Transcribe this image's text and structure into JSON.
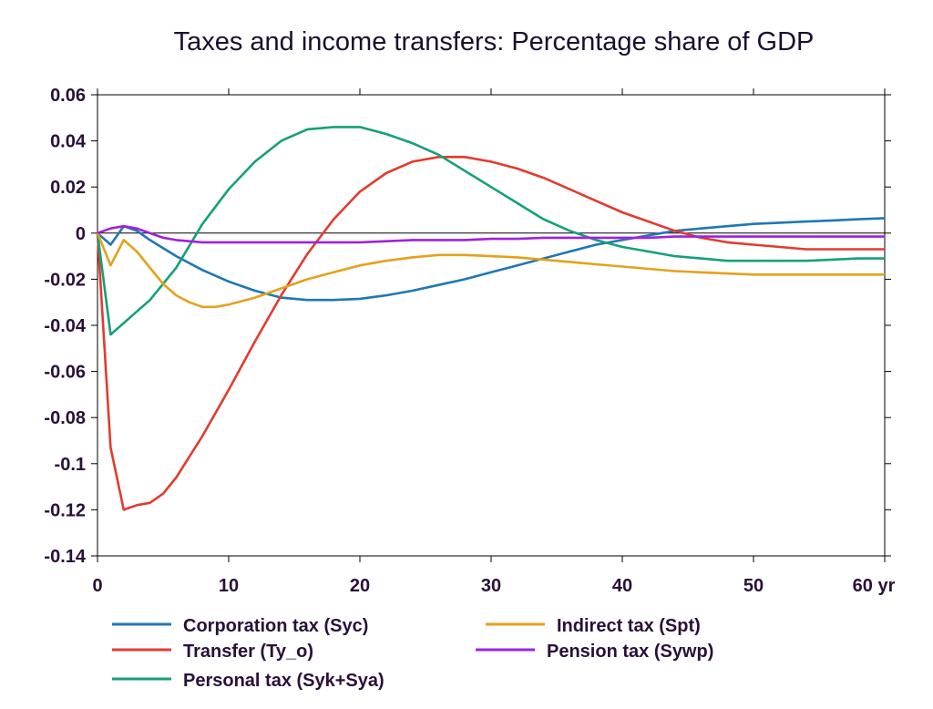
{
  "chart_data": {
    "type": "line",
    "title": "Taxes and income transfers: Percentage share of GDP",
    "xlim": [
      0,
      60
    ],
    "ylim": [
      -0.14,
      0.06
    ],
    "x_ticks": [
      0,
      10,
      20,
      30,
      40,
      50,
      60
    ],
    "x_tick_labels": [
      "0",
      "10",
      "20",
      "30",
      "40",
      "50",
      "60 yr"
    ],
    "y_ticks": [
      0.06,
      0.04,
      0.02,
      0,
      -0.02,
      -0.04,
      -0.06,
      -0.08,
      -0.1,
      -0.12,
      -0.14
    ],
    "y_tick_labels": [
      "0.06",
      "0.04",
      "0.02",
      "0",
      "-0.02",
      "-0.04",
      "-0.06",
      "-0.08",
      "-0.1",
      "-0.12",
      "-0.14"
    ],
    "grid": true,
    "zero_line": true,
    "legend_position": "bottom",
    "series": [
      {
        "name": "Corporation tax (Syc)",
        "color": "#1f77b4",
        "x": [
          0,
          1,
          2,
          3,
          4,
          6,
          8,
          10,
          12,
          14,
          16,
          18,
          20,
          22,
          24,
          26,
          28,
          30,
          32,
          34,
          36,
          38,
          40,
          42,
          44,
          46,
          48,
          50,
          52,
          54,
          56,
          58,
          60
        ],
        "y": [
          0,
          -0.005,
          0.003,
          0.001,
          -0.003,
          -0.01,
          -0.016,
          -0.021,
          -0.025,
          -0.028,
          -0.029,
          -0.029,
          -0.0285,
          -0.027,
          -0.025,
          -0.0225,
          -0.02,
          -0.017,
          -0.014,
          -0.011,
          -0.008,
          -0.005,
          -0.003,
          -0.001,
          0.001,
          0.002,
          0.003,
          0.004,
          0.0045,
          0.005,
          0.0055,
          0.006,
          0.0065
        ]
      },
      {
        "name": "Transfer (Ty_o)",
        "color": "#e33b2e",
        "x": [
          0,
          1,
          2,
          3,
          4,
          5,
          6,
          8,
          10,
          12,
          14,
          16,
          18,
          20,
          22,
          24,
          26,
          28,
          30,
          32,
          34,
          36,
          38,
          40,
          42,
          44,
          46,
          48,
          50,
          52,
          54,
          56,
          58,
          60
        ],
        "y": [
          0,
          -0.093,
          -0.12,
          -0.118,
          -0.117,
          -0.113,
          -0.106,
          -0.088,
          -0.068,
          -0.047,
          -0.027,
          -0.009,
          0.006,
          0.018,
          0.026,
          0.031,
          0.033,
          0.033,
          0.031,
          0.028,
          0.024,
          0.019,
          0.014,
          0.009,
          0.005,
          0.001,
          -0.002,
          -0.004,
          -0.005,
          -0.006,
          -0.007,
          -0.007,
          -0.007,
          -0.007
        ]
      },
      {
        "name": "Personal tax (Syk+Sya)",
        "color": "#14a07a",
        "x": [
          0,
          1,
          2,
          3,
          4,
          6,
          8,
          10,
          12,
          14,
          16,
          18,
          20,
          22,
          24,
          26,
          28,
          30,
          32,
          34,
          36,
          38,
          40,
          42,
          44,
          46,
          48,
          50,
          52,
          54,
          56,
          58,
          60
        ],
        "y": [
          0,
          -0.044,
          -0.039,
          -0.034,
          -0.029,
          -0.015,
          0.004,
          0.019,
          0.031,
          0.04,
          0.045,
          0.046,
          0.046,
          0.043,
          0.039,
          0.034,
          0.027,
          0.02,
          0.013,
          0.006,
          0.001,
          -0.003,
          -0.006,
          -0.008,
          -0.01,
          -0.011,
          -0.012,
          -0.012,
          -0.012,
          -0.012,
          -0.0115,
          -0.011,
          -0.011
        ]
      },
      {
        "name": "Indirect tax (Spt)",
        "color": "#e3a21a",
        "x": [
          0,
          1,
          2,
          3,
          4,
          5,
          6,
          7,
          8,
          9,
          10,
          12,
          14,
          16,
          18,
          20,
          22,
          24,
          26,
          28,
          30,
          32,
          34,
          36,
          38,
          40,
          42,
          44,
          46,
          48,
          50,
          52,
          54,
          56,
          58,
          60
        ],
        "y": [
          0,
          -0.014,
          -0.003,
          -0.008,
          -0.015,
          -0.022,
          -0.027,
          -0.03,
          -0.032,
          -0.032,
          -0.031,
          -0.028,
          -0.024,
          -0.02,
          -0.017,
          -0.014,
          -0.012,
          -0.0105,
          -0.0095,
          -0.0095,
          -0.01,
          -0.0105,
          -0.0115,
          -0.0125,
          -0.0135,
          -0.0145,
          -0.0155,
          -0.0165,
          -0.017,
          -0.0175,
          -0.018,
          -0.018,
          -0.018,
          -0.018,
          -0.018,
          -0.018
        ]
      },
      {
        "name": "Pension tax (Sywp)",
        "color": "#a020e0",
        "x": [
          0,
          1,
          2,
          3,
          4,
          5,
          6,
          8,
          10,
          12,
          14,
          16,
          18,
          20,
          22,
          24,
          26,
          28,
          30,
          32,
          34,
          36,
          38,
          40,
          42,
          44,
          46,
          48,
          50,
          52,
          54,
          56,
          58,
          60
        ],
        "y": [
          0,
          0.002,
          0.003,
          0.002,
          0,
          -0.002,
          -0.003,
          -0.004,
          -0.004,
          -0.004,
          -0.004,
          -0.004,
          -0.004,
          -0.004,
          -0.0035,
          -0.003,
          -0.003,
          -0.003,
          -0.0025,
          -0.0025,
          -0.002,
          -0.002,
          -0.002,
          -0.002,
          -0.002,
          -0.0015,
          -0.0015,
          -0.0015,
          -0.0015,
          -0.0015,
          -0.0015,
          -0.0015,
          -0.0015,
          -0.0015
        ]
      }
    ]
  }
}
